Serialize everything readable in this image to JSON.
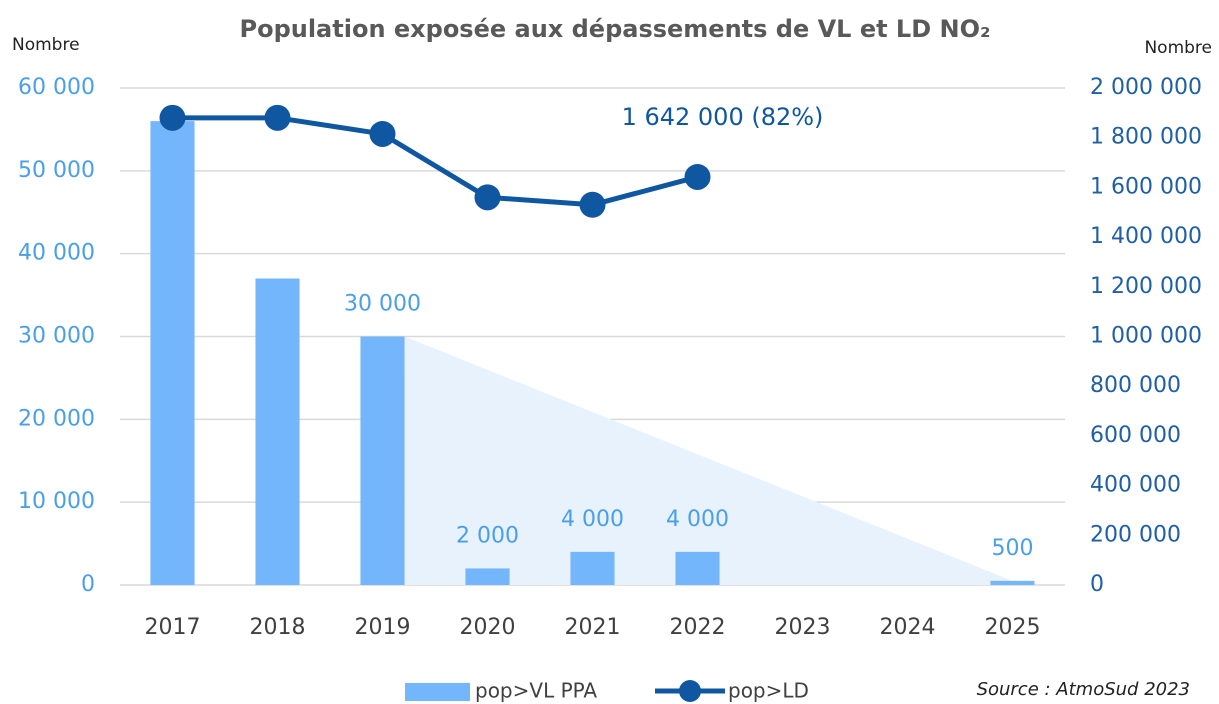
{
  "chart_data": {
    "type": "bar",
    "title": "Population exposée aux dépassements de VL et LD NO₂",
    "y_label": "Nombre",
    "y2_label": "Nombre",
    "source": "Source : AtmoSud 2023",
    "categories": [
      "2017",
      "2018",
      "2019",
      "2020",
      "2021",
      "2022",
      "2023",
      "2024",
      "2025"
    ],
    "series": [
      {
        "name": "pop>VL PPA",
        "type": "bar",
        "color": "#74b6fb",
        "values": [
          56000,
          37000,
          30000,
          2000,
          4000,
          4000,
          null,
          null,
          500
        ],
        "value_labels": [
          null,
          null,
          "30 000",
          "2 000",
          "4 000",
          "4 000",
          null,
          null,
          "500"
        ]
      },
      {
        "name": "pop>LD",
        "type": "line",
        "axis": "y2",
        "color": "#0f57a0",
        "values": [
          1880000,
          1880000,
          1815000,
          1560000,
          1530000,
          1642000,
          null,
          null,
          null
        ],
        "value_labels": [
          null,
          null,
          null,
          null,
          null,
          "1 642 000 (82%)",
          null,
          null,
          null
        ]
      }
    ],
    "ylim": [
      0,
      60000
    ],
    "yticks": [
      0,
      {
        "value": 10000,
        "label": "10 000"
      },
      {
        "value": 20000,
        "label": "20 000"
      },
      {
        "value": 30000,
        "label": "30 000"
      },
      {
        "value": 40000,
        "label": "40 000"
      },
      {
        "value": 50000,
        "label": "50 000"
      },
      {
        "value": 60000,
        "label": "60 000"
      }
    ],
    "y2lim": [
      0,
      2000000
    ],
    "y2ticks": [
      0,
      {
        "value": 200000,
        "label": "200 000"
      },
      {
        "value": 400000,
        "label": "400 000"
      },
      {
        "value": 600000,
        "label": "600 000"
      },
      {
        "value": 800000,
        "label": "800 000"
      },
      {
        "value": 1000000,
        "label": "1 000 000"
      },
      {
        "value": 1200000,
        "label": "1 200 000"
      },
      {
        "value": 1400000,
        "label": "1 400 000"
      },
      {
        "value": 1600000,
        "label": "1 600 000"
      },
      {
        "value": 1800000,
        "label": "1 800 000"
      },
      {
        "value": 2000000,
        "label": "2 000 000"
      }
    ],
    "grid": true
  }
}
